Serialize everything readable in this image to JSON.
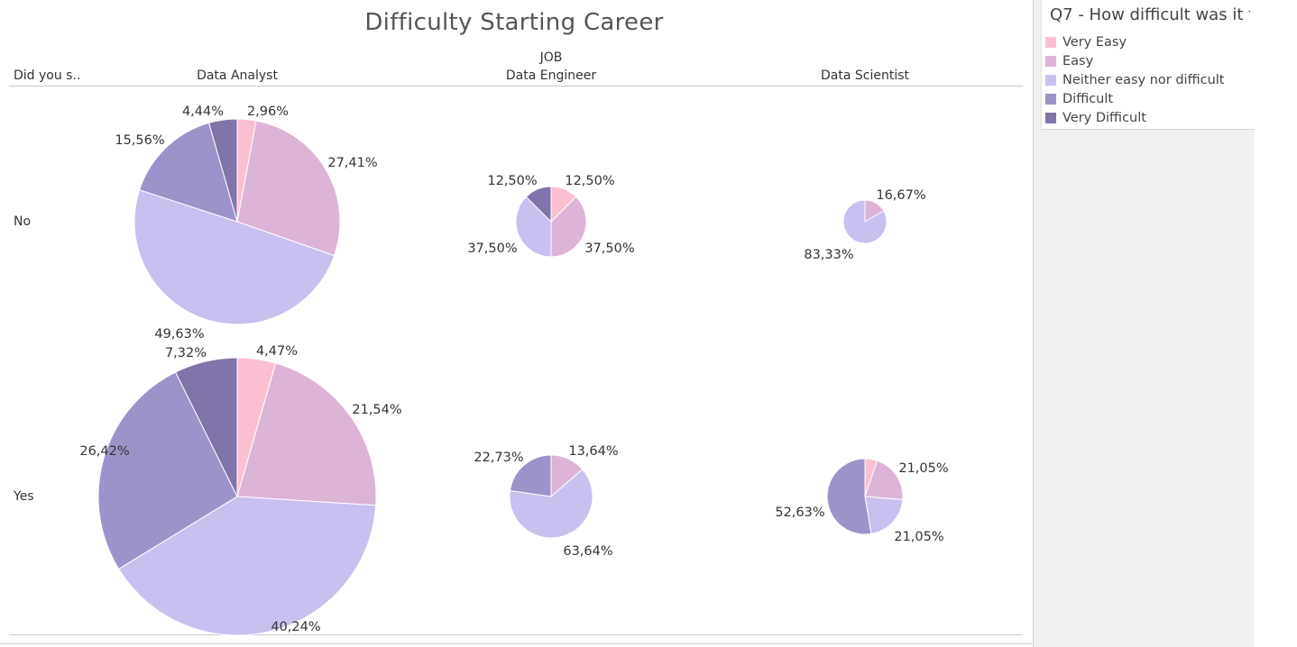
{
  "title": "Difficulty Starting Career",
  "headers": {
    "row_dimension": "Did you s..",
    "column_dimension": "JOB",
    "columns": [
      "Data Analyst",
      "Data Engineer",
      "Data Scientist"
    ],
    "rows": [
      "No",
      "Yes"
    ]
  },
  "legend": {
    "title": "Q7 - How difficult was it f...",
    "items": [
      {
        "label": "Very Easy",
        "color": "#fcbfd2"
      },
      {
        "label": "Easy",
        "color": "#dcb4d6"
      },
      {
        "label": "Neither easy nor difficult",
        "color": "#c8c0ef"
      },
      {
        "label": "Difficult",
        "color": "#9d93cb"
      },
      {
        "label": "Very Difficult",
        "color": "#8174a9"
      }
    ]
  },
  "chart_data": {
    "type": "pie",
    "title": "Difficulty Starting Career",
    "categories": [
      "Very Easy",
      "Easy",
      "Neither easy nor difficult",
      "Difficult",
      "Very Difficult"
    ],
    "pies": [
      {
        "job": "Data Analyst",
        "row": "No",
        "values": [
          2.96,
          27.41,
          49.63,
          15.56,
          4.44
        ],
        "labels": [
          "2,96%",
          "27,41%",
          "49,63%",
          "15,56%",
          "4,44%"
        ]
      },
      {
        "job": "Data Engineer",
        "row": "No",
        "values": [
          12.5,
          37.5,
          37.5,
          0,
          12.5
        ],
        "labels": [
          "12,50%",
          "37,50%",
          "37,50%",
          "",
          "12,50%"
        ]
      },
      {
        "job": "Data Scientist",
        "row": "No",
        "values": [
          0,
          16.67,
          83.33,
          0,
          0
        ],
        "labels": [
          "",
          "16,67%",
          "83,33%",
          "",
          ""
        ]
      },
      {
        "job": "Data Analyst",
        "row": "Yes",
        "values": [
          4.47,
          21.54,
          40.24,
          26.42,
          7.32
        ],
        "labels": [
          "4,47%",
          "21,54%",
          "40,24%",
          "26,42%",
          "7,32%"
        ]
      },
      {
        "job": "Data Engineer",
        "row": "Yes",
        "values": [
          0,
          13.64,
          63.64,
          22.73,
          0
        ],
        "labels": [
          "",
          "13,64%",
          "63,64%",
          "22,73%",
          ""
        ]
      },
      {
        "job": "Data Scientist",
        "row": "Yes",
        "values": [
          5.26,
          21.05,
          21.05,
          52.63,
          0
        ],
        "labels": [
          "",
          "21,05%",
          "21,05%",
          "52,63%",
          ""
        ]
      }
    ]
  }
}
